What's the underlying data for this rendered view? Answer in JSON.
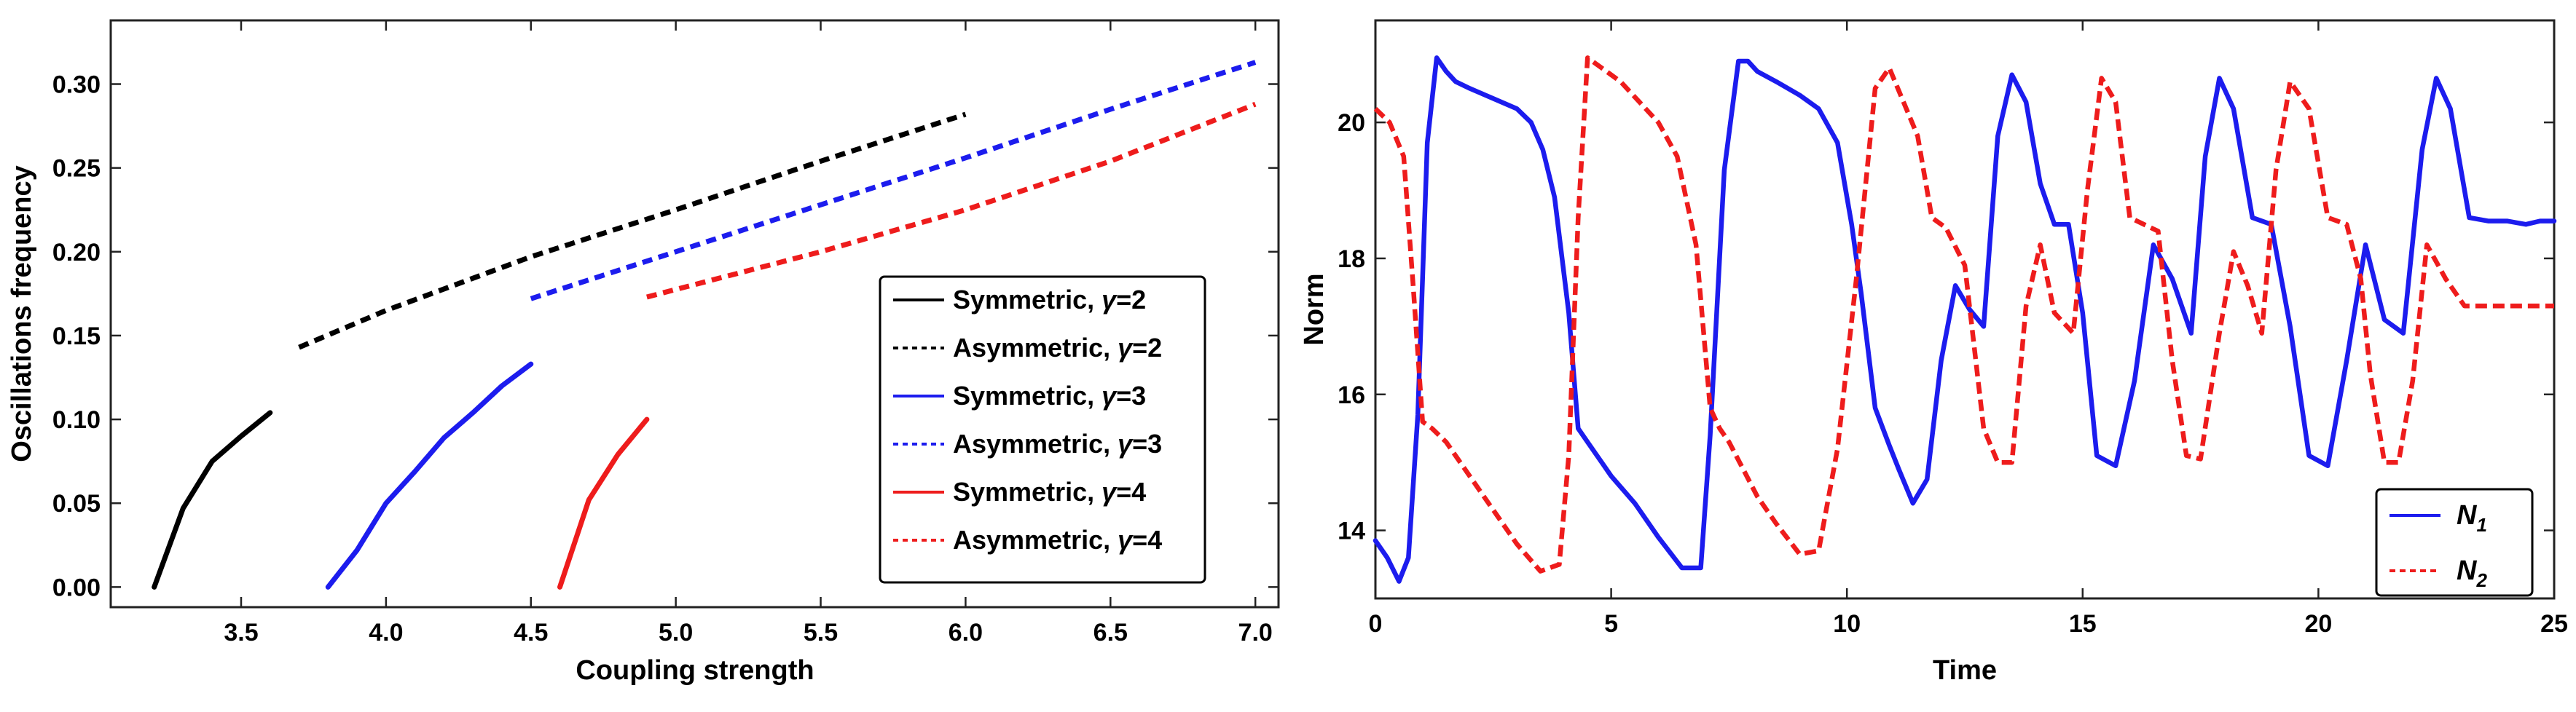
{
  "chart_data": [
    {
      "type": "line",
      "xlabel": "Coupling strength",
      "ylabel": "Oscillations frequency",
      "xlim": [
        3.05,
        7.08
      ],
      "ylim": [
        -0.012,
        0.338
      ],
      "xticks": [
        3.5,
        4.0,
        4.5,
        5.0,
        5.5,
        6.0,
        6.5,
        7.0
      ],
      "xtick_labels": [
        "3.5",
        "4.0",
        "4.5",
        "5.0",
        "5.5",
        "6.0",
        "6.5",
        "7.0"
      ],
      "yticks": [
        0.0,
        0.05,
        0.1,
        0.15,
        0.2,
        0.25,
        0.3
      ],
      "ytick_labels": [
        "0.00",
        "0.05",
        "0.10",
        "0.15",
        "0.20",
        "0.25",
        "0.30"
      ],
      "legend_position": "bottom-right",
      "series": [
        {
          "name": "Symmetric, γ=2",
          "legend_prefix": "Symmetric, ",
          "gamma_symbol": "γ",
          "legend_suffix": "=2",
          "color": "#000000",
          "style": "solid",
          "x": [
            3.2,
            3.3,
            3.4,
            3.5,
            3.6
          ],
          "y": [
            0.0,
            0.047,
            0.075,
            0.09,
            0.104
          ]
        },
        {
          "name": "Asymmetric, γ=2",
          "legend_prefix": "Asymmetric, ",
          "gamma_symbol": "γ",
          "legend_suffix": "=2",
          "color": "#000000",
          "style": "dashed",
          "x": [
            3.7,
            4.0,
            4.5,
            5.0,
            5.5,
            6.0
          ],
          "y": [
            0.143,
            0.165,
            0.197,
            0.225,
            0.254,
            0.282
          ]
        },
        {
          "name": "Symmetric, γ=3",
          "legend_prefix": "Symmetric, ",
          "gamma_symbol": "γ",
          "legend_suffix": "=3",
          "color": "#1c1cee",
          "style": "solid",
          "x": [
            3.8,
            3.9,
            4.0,
            4.1,
            4.2,
            4.3,
            4.4,
            4.5
          ],
          "y": [
            0.0,
            0.022,
            0.05,
            0.069,
            0.089,
            0.104,
            0.12,
            0.133
          ]
        },
        {
          "name": "Asymmetric, γ=3",
          "legend_prefix": "Asymmetric, ",
          "gamma_symbol": "γ",
          "legend_suffix": "=3",
          "color": "#1c1cee",
          "style": "dashed",
          "x": [
            4.5,
            5.0,
            5.5,
            6.0,
            6.5,
            7.0
          ],
          "y": [
            0.172,
            0.2,
            0.228,
            0.256,
            0.285,
            0.313
          ]
        },
        {
          "name": "Symmetric, γ=4",
          "legend_prefix": "Symmetric, ",
          "gamma_symbol": "γ",
          "legend_suffix": "=4",
          "color": "#ee1c1c",
          "style": "solid",
          "x": [
            4.6,
            4.7,
            4.8,
            4.9
          ],
          "y": [
            0.0,
            0.052,
            0.079,
            0.1
          ]
        },
        {
          "name": "Asymmetric, γ=4",
          "legend_prefix": "Asymmetric, ",
          "gamma_symbol": "γ",
          "legend_suffix": "=4",
          "color": "#ee1c1c",
          "style": "dashed",
          "x": [
            4.9,
            5.5,
            6.0,
            6.5,
            7.0
          ],
          "y": [
            0.173,
            0.2,
            0.225,
            0.254,
            0.288
          ]
        }
      ]
    },
    {
      "type": "line",
      "xlabel": "Time",
      "ylabel": "Norm",
      "xlim": [
        0,
        25
      ],
      "ylim": [
        13.0,
        21.5
      ],
      "xticks": [
        0,
        5,
        10,
        15,
        20,
        25
      ],
      "xtick_labels": [
        "0",
        "5",
        "10",
        "15",
        "20",
        "25"
      ],
      "yticks": [
        14,
        16,
        18,
        20
      ],
      "ytick_labels": [
        "14",
        "16",
        "18",
        "20"
      ],
      "legend_position": "bottom-right",
      "series": [
        {
          "name": "N1",
          "legend_main": "N",
          "legend_sub": "1",
          "color": "#1c1cee",
          "style": "solid",
          "x": [
            0,
            0.25,
            0.5,
            0.7,
            0.9,
            1.1,
            1.3,
            1.5,
            1.7,
            2,
            2.5,
            3,
            3.3,
            3.55,
            3.8,
            4.1,
            4.3,
            4.5,
            4.8,
            5,
            5.5,
            6,
            6.5,
            6.9,
            7.1,
            7.4,
            7.7,
            7.9,
            8.1,
            8.5,
            9,
            9.4,
            9.8,
            10.1,
            10.3,
            10.6,
            10.9,
            11.1,
            11.4,
            11.7,
            12,
            12.3,
            12.6,
            12.9,
            13.2,
            13.5,
            13.8,
            14.1,
            14.4,
            14.7,
            15,
            15.3,
            15.7,
            16.1,
            16.5,
            16.9,
            17.3,
            17.6,
            17.9,
            18.2,
            18.6,
            19,
            19.4,
            19.8,
            20.2,
            20.6,
            21,
            21.4,
            21.8,
            22.2,
            22.5,
            22.8,
            23.2,
            23.6,
            24,
            24.4,
            24.7,
            25
          ],
          "y": [
            13.85,
            13.6,
            13.25,
            13.6,
            15.7,
            19.7,
            20.95,
            20.75,
            20.6,
            20.5,
            20.35,
            20.2,
            20.0,
            19.6,
            18.9,
            17.2,
            15.5,
            15.3,
            15.0,
            14.8,
            14.4,
            13.9,
            13.45,
            13.45,
            15.4,
            19.3,
            20.9,
            20.9,
            20.75,
            20.6,
            20.4,
            20.2,
            19.7,
            18.5,
            17.5,
            15.8,
            15.25,
            14.9,
            14.4,
            14.75,
            16.5,
            17.6,
            17.25,
            17.0,
            19.8,
            20.7,
            20.3,
            19.1,
            18.5,
            18.5,
            17.2,
            15.1,
            14.95,
            16.2,
            18.2,
            17.7,
            16.9,
            19.5,
            20.65,
            20.2,
            18.6,
            18.5,
            17.0,
            15.1,
            14.95,
            16.5,
            18.2,
            17.1,
            16.9,
            19.6,
            20.65,
            20.2,
            18.6,
            18.55,
            18.55,
            18.5,
            18.55,
            18.55
          ]
        },
        {
          "name": "N2",
          "legend_main": "N",
          "legend_sub": "2",
          "color": "#ee1c1c",
          "style": "dashed",
          "x": [
            0,
            0.3,
            0.6,
            0.8,
            1.0,
            1.2,
            1.5,
            2,
            2.5,
            3,
            3.5,
            3.9,
            4.1,
            4.3,
            4.5,
            4.8,
            5.2,
            5.6,
            6,
            6.4,
            6.8,
            7.1,
            7.3,
            7.5,
            7.8,
            8.1,
            8.5,
            9,
            9.4,
            9.8,
            10.2,
            10.6,
            10.9,
            11.2,
            11.5,
            11.8,
            12.1,
            12.5,
            12.9,
            13.2,
            13.5,
            13.8,
            14.1,
            14.4,
            14.8,
            15.1,
            15.4,
            15.7,
            16.0,
            16.3,
            16.6,
            16.9,
            17.2,
            17.5,
            17.9,
            18.2,
            18.5,
            18.8,
            19.1,
            19.4,
            19.8,
            20.2,
            20.6,
            20.9,
            21.1,
            21.4,
            21.7,
            22.0,
            22.3,
            22.7,
            23.1,
            23.5,
            23.8,
            24.1,
            24.5,
            25
          ],
          "y": [
            20.2,
            20.0,
            19.5,
            17.6,
            15.6,
            15.5,
            15.3,
            14.8,
            14.3,
            13.8,
            13.4,
            13.5,
            15.1,
            18.6,
            20.95,
            20.8,
            20.6,
            20.3,
            20.0,
            19.5,
            18.2,
            15.8,
            15.5,
            15.3,
            14.9,
            14.5,
            14.1,
            13.65,
            13.7,
            15.2,
            17.7,
            20.5,
            20.8,
            20.3,
            19.8,
            18.6,
            18.45,
            17.9,
            15.5,
            15.0,
            15.0,
            17.3,
            18.2,
            17.2,
            16.9,
            19.0,
            20.65,
            20.3,
            18.6,
            18.5,
            18.4,
            16.5,
            15.1,
            15.05,
            16.9,
            18.1,
            17.6,
            16.9,
            19.3,
            20.6,
            20.2,
            18.6,
            18.5,
            17.7,
            16.3,
            15.0,
            15.0,
            16.2,
            18.2,
            17.7,
            17.3,
            17.3,
            17.3,
            17.3,
            17.3,
            17.3
          ]
        }
      ]
    }
  ]
}
